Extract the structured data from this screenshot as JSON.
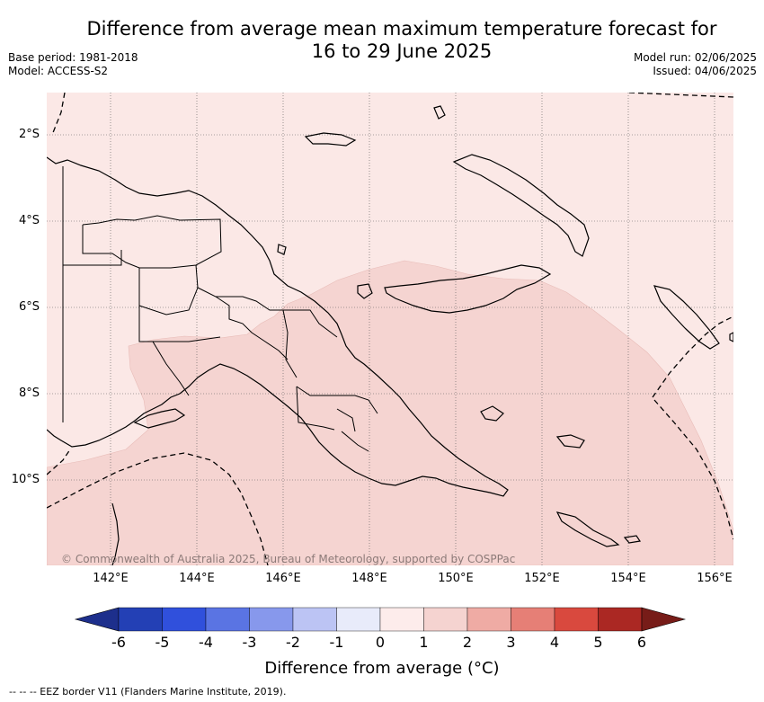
{
  "header": {
    "title_line1": "Difference from average mean maximum temperature forecast for",
    "title_line2": "16 to 29 June 2025",
    "base_period": "Base period: 1981-2018",
    "model": "Model: ACCESS-S2",
    "model_run": "Model run: 02/06/2025",
    "issued": "Issued: 04/06/2025"
  },
  "map": {
    "lat_ticks": [
      "2°S",
      "4°S",
      "6°S",
      "8°S",
      "10°S"
    ],
    "lon_ticks": [
      "142°E",
      "144°E",
      "146°E",
      "148°E",
      "150°E",
      "152°E",
      "154°E",
      "156°E"
    ],
    "copyright": "© Commonwealth of Australia 2025, Bureau of Meteorology, supported by COSPPac",
    "colors": {
      "zero_to_one": "#fbe8e6",
      "one_to_two": "#f5d4d1",
      "coast": "#000000"
    }
  },
  "colorbar": {
    "ticks": [
      "-6",
      "-5",
      "-4",
      "-3",
      "-2",
      "-1",
      "0",
      "1",
      "2",
      "3",
      "4",
      "5",
      "6"
    ],
    "colors": [
      "#1d2f8c",
      "#2340b5",
      "#3050dc",
      "#5a74e3",
      "#8798ec",
      "#bcc4f4",
      "#e8ebfa",
      "#fdeceb",
      "#f5d3d0",
      "#efaba4",
      "#e67f76",
      "#d9493e",
      "#ab2823",
      "#771c18"
    ],
    "label": "Difference from average (°C)"
  },
  "footer": {
    "eez_note": "--  --  -- EEZ border V11 (Flanders Marine Institute, 2019)."
  }
}
